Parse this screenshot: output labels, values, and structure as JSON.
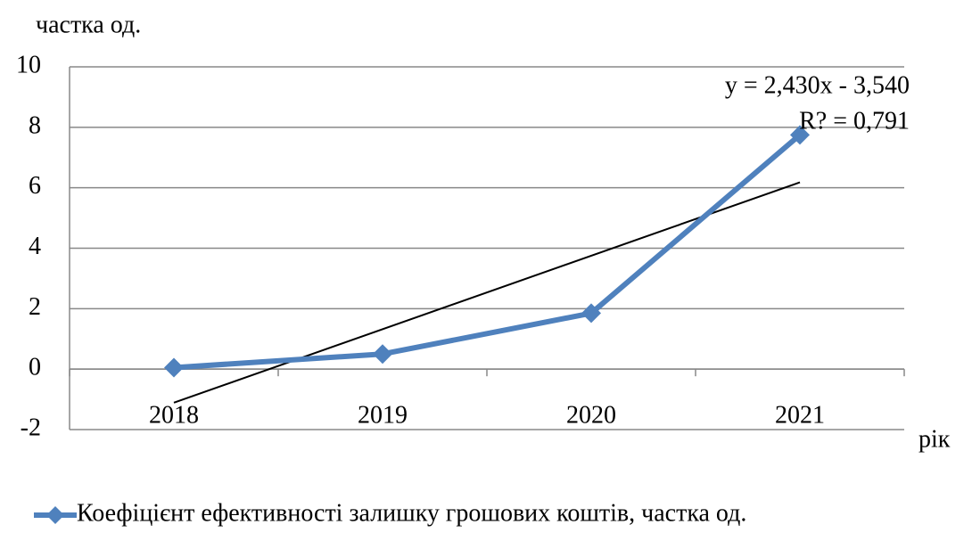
{
  "chart_data": {
    "type": "line",
    "y_label": "частка од.",
    "x_label": "рік",
    "categories": [
      "2018",
      "2019",
      "2020",
      "2021"
    ],
    "series": [
      {
        "name": "Коефіцієнт ефективності залишку грошових коштів, частка од.",
        "color": "#4f81bd",
        "values": [
          0.05,
          0.5,
          1.85,
          7.75
        ]
      }
    ],
    "trendline": {
      "equation": "y = 2,430x - 3,540",
      "r2": "R? = 0,791",
      "slope": 2.43,
      "intercept": -3.54,
      "color": "#000000"
    },
    "ylim": [
      -2,
      10
    ],
    "yticks": [
      -2,
      0,
      2,
      4,
      6,
      8,
      10
    ],
    "grid": true,
    "legend": "bottom"
  }
}
